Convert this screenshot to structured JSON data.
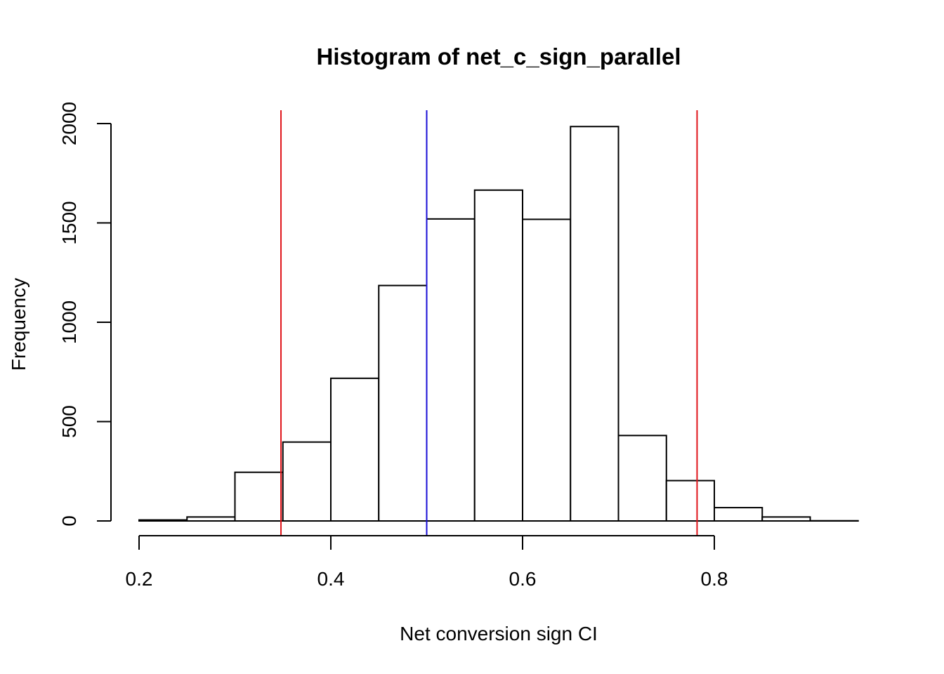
{
  "chart_data": {
    "type": "bar",
    "title": "Histogram of net_c_sign_parallel",
    "xlabel": "Net conversion sign CI",
    "ylabel": "Frequency",
    "xlim": [
      0.2,
      0.95
    ],
    "ylim": [
      0,
      2000
    ],
    "x_ticks": [
      0.2,
      0.4,
      0.6,
      0.8
    ],
    "x_tick_labels": [
      "0.2",
      "0.4",
      "0.6",
      "0.8"
    ],
    "y_ticks": [
      0,
      500,
      1000,
      1500,
      2000
    ],
    "y_tick_labels": [
      "0",
      "500",
      "1000",
      "1500",
      "2000"
    ],
    "bins": [
      {
        "x0": 0.2,
        "x1": 0.25,
        "count": 5
      },
      {
        "x0": 0.25,
        "x1": 0.3,
        "count": 20
      },
      {
        "x0": 0.3,
        "x1": 0.35,
        "count": 245
      },
      {
        "x0": 0.35,
        "x1": 0.4,
        "count": 397
      },
      {
        "x0": 0.4,
        "x1": 0.45,
        "count": 718
      },
      {
        "x0": 0.45,
        "x1": 0.5,
        "count": 1185
      },
      {
        "x0": 0.5,
        "x1": 0.55,
        "count": 1520
      },
      {
        "x0": 0.55,
        "x1": 0.6,
        "count": 1665
      },
      {
        "x0": 0.6,
        "x1": 0.65,
        "count": 1518
      },
      {
        "x0": 0.65,
        "x1": 0.7,
        "count": 1985
      },
      {
        "x0": 0.7,
        "x1": 0.75,
        "count": 430
      },
      {
        "x0": 0.75,
        "x1": 0.8,
        "count": 203
      },
      {
        "x0": 0.8,
        "x1": 0.85,
        "count": 67
      },
      {
        "x0": 0.85,
        "x1": 0.9,
        "count": 20
      },
      {
        "x0": 0.9,
        "x1": 0.95,
        "count": 1
      }
    ],
    "vertical_lines": [
      {
        "x": 0.348,
        "color": "#e0151b"
      },
      {
        "x": 0.5,
        "color": "#1a0fd6"
      },
      {
        "x": 0.782,
        "color": "#e0151b"
      }
    ],
    "grid": false,
    "legend": "none"
  }
}
